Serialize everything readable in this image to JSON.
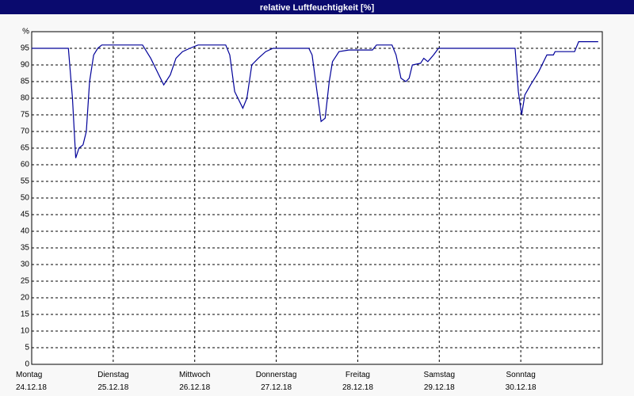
{
  "chart_data": {
    "type": "line",
    "title": "relative Luftfeuchtigkeit [%]",
    "xlim": [
      0,
      7
    ],
    "xticks": [
      {
        "value": 0,
        "label": "Montag"
      },
      {
        "value": 1,
        "label": "Dienstag"
      },
      {
        "value": 2,
        "label": "Mittwoch"
      },
      {
        "value": 3,
        "label": "Donnerstag"
      },
      {
        "value": 4,
        "label": "Freitag"
      },
      {
        "value": 5,
        "label": "Samstag"
      },
      {
        "value": 6,
        "label": "Sonntag"
      }
    ],
    "xtick_dates": [
      "24.12.18",
      "25.12.18",
      "26.12.18",
      "27.12.18",
      "28.12.18",
      "29.12.18",
      "30.12.18"
    ],
    "ylim": [
      0,
      100
    ],
    "yticks": [
      0,
      5,
      10,
      15,
      20,
      25,
      30,
      35,
      40,
      45,
      50,
      55,
      60,
      65,
      70,
      75,
      80,
      85,
      90,
      95,
      {
        "value": 100,
        "label": "%"
      }
    ],
    "grid": true,
    "series": [
      {
        "color": "#000099",
        "x": [
          0,
          0.45,
          0.5,
          0.54,
          0.58,
          0.63,
          0.67,
          0.71,
          0.76,
          0.81,
          0.86,
          1.36,
          1.46,
          1.56,
          1.62,
          1.7,
          1.77,
          1.85,
          1.94,
          2.04,
          2.38,
          2.43,
          2.49,
          2.59,
          2.64,
          2.7,
          2.78,
          2.87,
          2.96,
          3.4,
          3.44,
          3.5,
          3.55,
          3.6,
          3.65,
          3.69,
          3.77,
          3.89,
          4.18,
          4.23,
          4.42,
          4.47,
          4.53,
          4.59,
          4.63,
          4.67,
          4.77,
          4.81,
          4.86,
          4.93,
          4.99,
          5.54,
          5.93,
          5.97,
          6.01,
          6.05,
          6.12,
          6.22,
          6.32,
          6.4,
          6.42,
          6.66,
          6.71,
          6.95
        ],
        "values": [
          95,
          95,
          80,
          62,
          65,
          66,
          70,
          85,
          93,
          95,
          96,
          96,
          92,
          87,
          84,
          87,
          92,
          94,
          95,
          96,
          96,
          93,
          82,
          77,
          80,
          90,
          92,
          94,
          95,
          95,
          93,
          82,
          73,
          74,
          85,
          91,
          94,
          94.5,
          94.5,
          96,
          96,
          93,
          86,
          85,
          86,
          90,
          90.5,
          92,
          91,
          93,
          95,
          95,
          95,
          82,
          75,
          81,
          84,
          88,
          93,
          93,
          94,
          94,
          97,
          97
        ]
      }
    ]
  }
}
